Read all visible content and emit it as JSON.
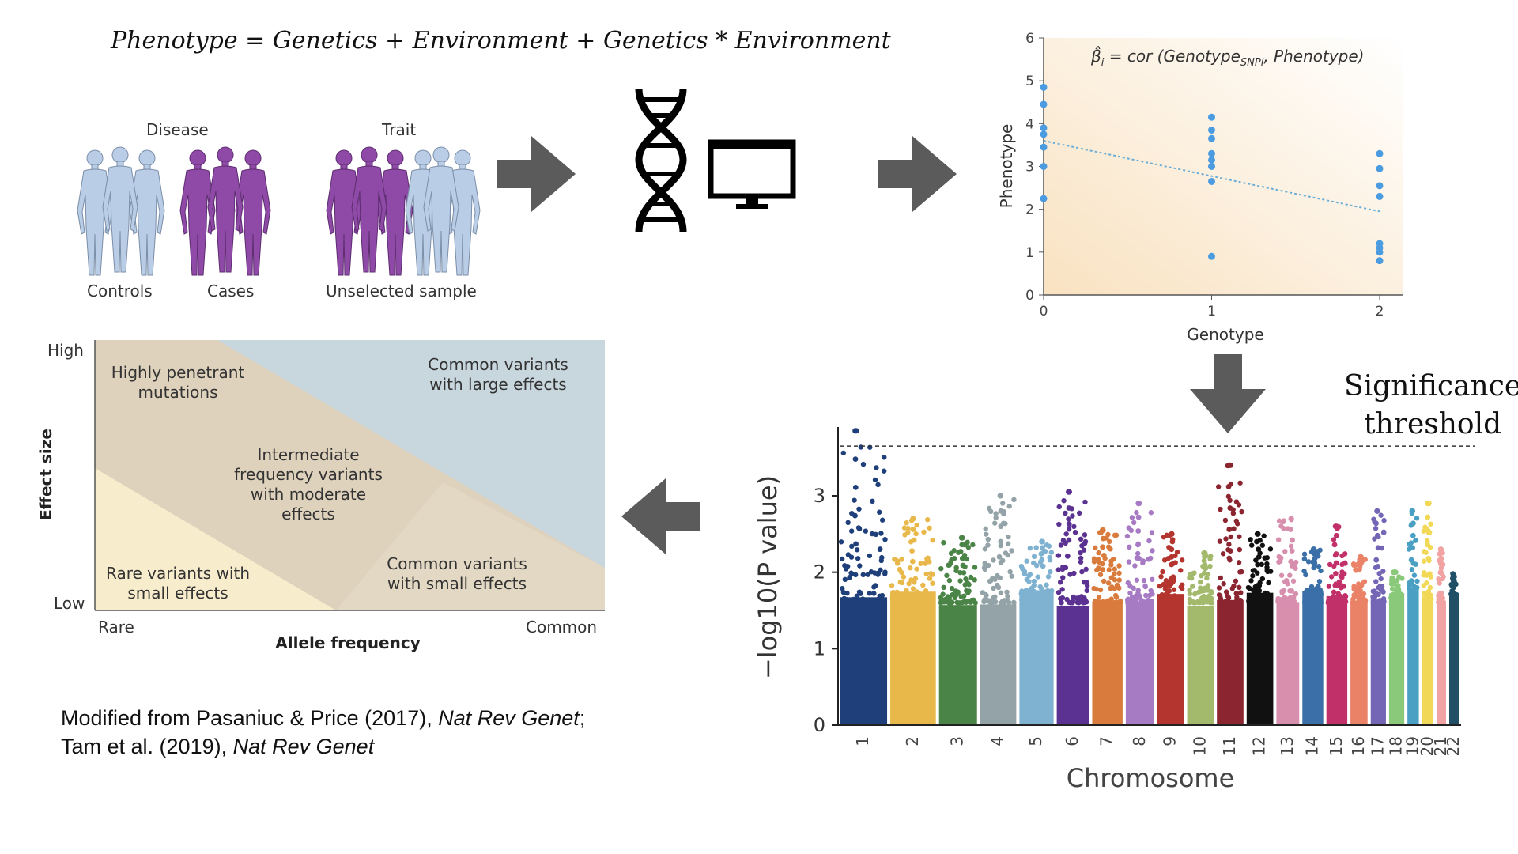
{
  "equation": "Phenotype = Genetics + Environment + Genetics * Environment",
  "study_design": {
    "disease_label": "Disease",
    "trait_label": "Trait",
    "controls_label": "Controls",
    "cases_label": "Cases",
    "unselected_label": "Unselected sample",
    "colors": {
      "control": "#b9cde6",
      "case": "#8e4aa6"
    }
  },
  "icons": {
    "dna": "dna-helix-icon",
    "computer": "computer-monitor-icon",
    "arrow_color": "#5b5b5b"
  },
  "regression_plot": {
    "formula": "β̂ᵢ = cor (Genotype, Phenotype)",
    "formula_parts": {
      "beta": "β̂",
      "sub_i": "i",
      "eq": " = cor (Genotype",
      "sub_snp": "SNPi",
      "rest": ", Phenotype)"
    },
    "xlabel": "Genotype",
    "ylabel": "Phenotype",
    "x_ticks": [
      "0",
      "1",
      "2"
    ],
    "y_ticks": [
      "0",
      "1",
      "2",
      "3",
      "4",
      "5",
      "6"
    ]
  },
  "effect_size_chart": {
    "ylabel": "Effect size",
    "xlabel": "Allele frequency",
    "y_high": "High",
    "y_low": "Low",
    "x_rare": "Rare",
    "x_common": "Common",
    "regions": [
      {
        "text": [
          "Highly penetrant",
          "mutations"
        ]
      },
      {
        "text": [
          "Common variants",
          "with large effects"
        ]
      },
      {
        "text": [
          "Intermediate",
          "frequency variants",
          "with moderate",
          "effects"
        ]
      },
      {
        "text": [
          "Rare variants with",
          "small effects"
        ]
      },
      {
        "text": [
          "Common variants",
          "with small effects"
        ]
      }
    ]
  },
  "manhattan": {
    "ylabel": "−log10(P value)",
    "xlabel": "Chromosome",
    "y_ticks": [
      "0",
      "1",
      "2",
      "3"
    ],
    "significance_label": [
      "Significance",
      "threshold"
    ],
    "threshold": 3.65
  },
  "citation": {
    "line1_pre": "Modified from Pasaniuc & Price (2017), ",
    "line1_journal": "Nat Rev Genet",
    "line1_post": ";",
    "line2_pre": "Tam et al. (2019), ",
    "line2_journal": "Nat Rev Genet"
  },
  "chart_data": [
    {
      "type": "scatter",
      "title": "",
      "xlabel": "Genotype",
      "ylabel": "Phenotype",
      "xlim": [
        0,
        2
      ],
      "ylim": [
        0,
        6
      ],
      "points": [
        [
          0,
          4.85
        ],
        [
          0,
          4.45
        ],
        [
          0,
          3.9
        ],
        [
          0,
          3.75
        ],
        [
          0,
          3.45
        ],
        [
          0,
          3.0
        ],
        [
          0,
          2.25
        ],
        [
          1,
          4.15
        ],
        [
          1,
          3.85
        ],
        [
          1,
          3.65
        ],
        [
          1,
          3.3
        ],
        [
          1,
          3.15
        ],
        [
          1,
          3.0
        ],
        [
          1,
          2.65
        ],
        [
          1,
          0.9
        ],
        [
          2,
          3.3
        ],
        [
          2,
          2.95
        ],
        [
          2,
          2.55
        ],
        [
          2,
          2.3
        ],
        [
          2,
          1.2
        ],
        [
          2,
          1.1
        ],
        [
          2,
          1.0
        ],
        [
          2,
          0.8
        ]
      ],
      "trend_line": [
        [
          0,
          3.6
        ],
        [
          2,
          1.95
        ]
      ]
    },
    {
      "type": "scatter",
      "title": "",
      "xlabel": "Chromosome",
      "ylabel": "−log10(P value)",
      "ylim": [
        0,
        3.9
      ],
      "threshold": 3.65,
      "chromosomes": [
        {
          "chr": "1",
          "max": 3.85,
          "color": "#1f3f7a"
        },
        {
          "chr": "2",
          "max": 2.7,
          "color": "#e8b84a"
        },
        {
          "chr": "3",
          "max": 2.45,
          "color": "#4a8447"
        },
        {
          "chr": "4",
          "max": 3.0,
          "color": "#93a3a8"
        },
        {
          "chr": "5",
          "max": 2.4,
          "color": "#7fb1d0"
        },
        {
          "chr": "6",
          "max": 3.05,
          "color": "#5b3191"
        },
        {
          "chr": "7",
          "max": 2.55,
          "color": "#d97b3c"
        },
        {
          "chr": "8",
          "max": 2.9,
          "color": "#a77ac4"
        },
        {
          "chr": "9",
          "max": 2.5,
          "color": "#b4352f"
        },
        {
          "chr": "10",
          "max": 2.25,
          "color": "#a3ba6d"
        },
        {
          "chr": "11",
          "max": 3.4,
          "color": "#8b2530"
        },
        {
          "chr": "12",
          "max": 2.5,
          "color": "#111111"
        },
        {
          "chr": "13",
          "max": 2.7,
          "color": "#d88fae"
        },
        {
          "chr": "14",
          "max": 2.3,
          "color": "#3a6fa8"
        },
        {
          "chr": "15",
          "max": 2.6,
          "color": "#c2306a"
        },
        {
          "chr": "16",
          "max": 2.2,
          "color": "#ea8268"
        },
        {
          "chr": "17",
          "max": 2.8,
          "color": "#7466b5"
        },
        {
          "chr": "18",
          "max": 2.0,
          "color": "#8ac97a"
        },
        {
          "chr": "19",
          "max": 2.8,
          "color": "#4aa0c3"
        },
        {
          "chr": "20",
          "max": 2.9,
          "color": "#f1d957"
        },
        {
          "chr": "21",
          "max": 2.3,
          "color": "#f1a2a3"
        },
        {
          "chr": "22",
          "max": 1.9,
          "color": "#204f66"
        }
      ]
    }
  ]
}
